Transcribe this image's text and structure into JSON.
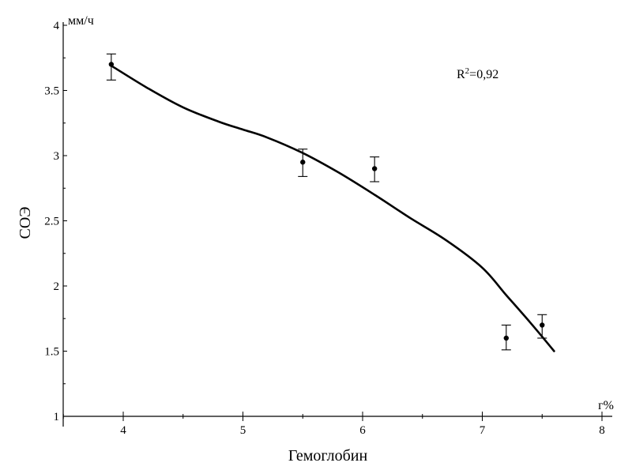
{
  "chart_data": {
    "type": "scatter",
    "xlabel": "Гемоглобин",
    "ylabel": "СОЭ",
    "x_unit": "г%",
    "y_unit": "мм/ч",
    "xlim": [
      3.5,
      8.1
    ],
    "ylim": [
      1,
      4
    ],
    "x_ticks": [
      "4",
      "5",
      "6",
      "7",
      "8"
    ],
    "y_ticks": [
      "1",
      "1.5",
      "2",
      "2.5",
      "3",
      "3.5",
      "4"
    ],
    "annotation": {
      "base": "R",
      "sup": "2",
      "rest": "=0,92"
    },
    "grid": false,
    "points": [
      {
        "x": 3.9,
        "y": 3.7,
        "err_low": 3.58,
        "err_high": 3.78
      },
      {
        "x": 5.5,
        "y": 2.95,
        "err_low": 2.84,
        "err_high": 3.05
      },
      {
        "x": 6.1,
        "y": 2.9,
        "err_low": 2.8,
        "err_high": 2.99
      },
      {
        "x": 7.2,
        "y": 1.6,
        "err_low": 1.51,
        "err_high": 1.7
      },
      {
        "x": 7.5,
        "y": 1.7,
        "err_low": 1.6,
        "err_high": 1.78
      }
    ],
    "trend_line": {
      "x": [
        3.9,
        4.2,
        4.5,
        4.8,
        5.0,
        5.2,
        5.5,
        5.8,
        6.1,
        6.4,
        6.7,
        7.0,
        7.2,
        7.4,
        7.6
      ],
      "y": [
        3.69,
        3.52,
        3.37,
        3.26,
        3.2,
        3.14,
        3.02,
        2.87,
        2.7,
        2.52,
        2.35,
        2.14,
        1.93,
        1.72,
        1.5
      ]
    }
  }
}
